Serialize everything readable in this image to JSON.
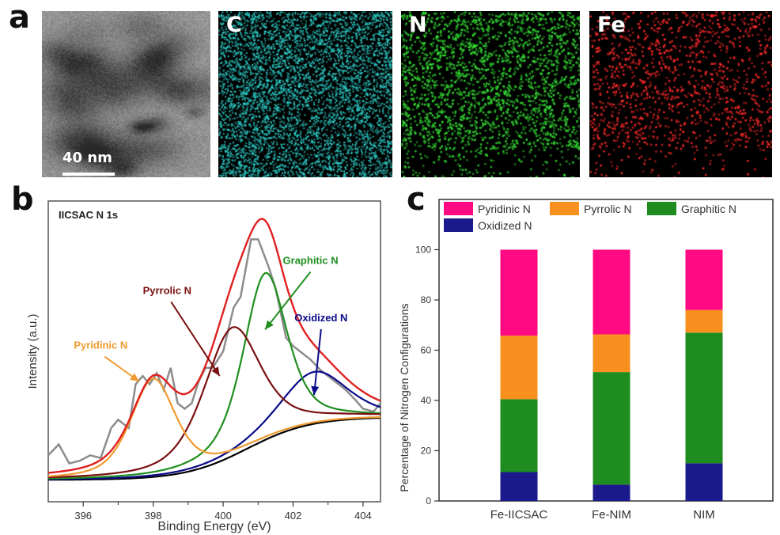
{
  "panels": {
    "a": {
      "letter": "a",
      "scale_bar": "40 nm",
      "maps": [
        {
          "label": "C",
          "color": "#2fd6d0"
        },
        {
          "label": "N",
          "color": "#35e035"
        },
        {
          "label": "Fe",
          "color": "#ff2a2a"
        }
      ]
    },
    "b": {
      "letter": "b"
    },
    "c": {
      "letter": "c"
    }
  },
  "chart_data": [
    {
      "type": "line",
      "title": "IICSAC  N 1s",
      "xlabel": "Binding Energy (eV)",
      "ylabel": "Intensity (a.u.)",
      "xlim": [
        395,
        404.5
      ],
      "ylim": [
        0,
        1.1
      ],
      "xticks": [
        396,
        398,
        400,
        402,
        404
      ],
      "x_minor_ticks": [
        397,
        399,
        401,
        403
      ],
      "y_ticks_shown": false,
      "baseline": {
        "name": "Background",
        "color": "#000000",
        "low": 0.08,
        "high": 0.31,
        "center": 400.7,
        "width": 0.9
      },
      "components": [
        {
          "name": "Pyridinic N",
          "color": "#f09a30",
          "center": 398.0,
          "height": 0.36,
          "fwhm": 1.5
        },
        {
          "name": "Pyrrolic N",
          "color": "#7a1010",
          "center": 400.25,
          "height": 0.47,
          "fwhm": 1.9
        },
        {
          "name": "Graphitic N",
          "color": "#1f8f1f",
          "center": 401.2,
          "height": 0.61,
          "fwhm": 1.45
        },
        {
          "name": "Oxidized N",
          "color": "#0a0a8a",
          "center": 402.6,
          "height": 0.19,
          "fwhm": 2.2
        }
      ],
      "envelope": {
        "name": "Fitted envelope",
        "color": "#e02020"
      },
      "raw": {
        "name": "Raw data",
        "color": "#8c8c8c",
        "x": [
          395.0,
          395.3,
          395.6,
          395.9,
          396.2,
          396.5,
          396.8,
          397.0,
          397.3,
          397.5,
          397.7,
          397.9,
          398.1,
          398.3,
          398.5,
          398.7,
          398.9,
          399.1,
          399.3,
          399.5,
          399.7,
          400.0,
          400.3,
          400.5,
          400.8,
          401.0,
          401.3,
          401.5,
          401.8,
          402.0,
          402.2,
          402.5,
          402.8,
          403.0,
          403.3,
          403.5,
          403.8,
          404.0,
          404.3,
          404.5
        ],
        "y": [
          0.17,
          0.21,
          0.14,
          0.15,
          0.17,
          0.16,
          0.27,
          0.3,
          0.27,
          0.43,
          0.46,
          0.43,
          0.47,
          0.41,
          0.49,
          0.36,
          0.34,
          0.36,
          0.44,
          0.49,
          0.49,
          0.55,
          0.71,
          0.75,
          0.96,
          0.96,
          0.86,
          0.78,
          0.6,
          0.57,
          0.55,
          0.52,
          0.48,
          0.46,
          0.43,
          0.41,
          0.37,
          0.34,
          0.33,
          0.36
        ]
      },
      "annotations": [
        {
          "text": "Pyridinic N",
          "color": "#f09a30",
          "x": 396.5,
          "y": 0.56,
          "arrow_to": [
            397.6,
            0.44
          ]
        },
        {
          "text": "Pyrrolic N",
          "color": "#7a1010",
          "x": 398.4,
          "y": 0.76,
          "arrow_to": [
            399.9,
            0.46
          ]
        },
        {
          "text": "Graphitic N",
          "color": "#1f8f1f",
          "x": 402.5,
          "y": 0.87,
          "arrow_to": [
            401.2,
            0.63
          ]
        },
        {
          "text": "Oxidized N",
          "color": "#0a0a8a",
          "x": 402.8,
          "y": 0.66,
          "arrow_to": [
            402.6,
            0.39
          ]
        }
      ]
    },
    {
      "type": "bar",
      "stacked": true,
      "title": "",
      "xlabel": "",
      "ylabel": "Percentage of Nitrogen Configurations",
      "ylim": [
        0,
        120
      ],
      "yticks": [
        0,
        20,
        40,
        60,
        80,
        100
      ],
      "categories": [
        "Fe-IICSAC",
        "Fe-NIM",
        "NIM"
      ],
      "legend_position": "top",
      "legend_order": [
        "Pyridinic N",
        "Pyrrolic N",
        "Graphitic N",
        "Oxidized N"
      ],
      "series": [
        {
          "name": "Oxidized N",
          "color": "#1a1a8c",
          "values": [
            11.5,
            6.5,
            15.0
          ]
        },
        {
          "name": "Graphitic N",
          "color": "#1e8c1e",
          "values": [
            29.0,
            44.8,
            52.0
          ]
        },
        {
          "name": "Pyrrolic N",
          "color": "#f7901e",
          "values": [
            25.3,
            15.0,
            9.0
          ]
        },
        {
          "name": "Pyridinic N",
          "color": "#ff0a82",
          "values": [
            34.2,
            33.7,
            24.0
          ]
        }
      ]
    }
  ]
}
